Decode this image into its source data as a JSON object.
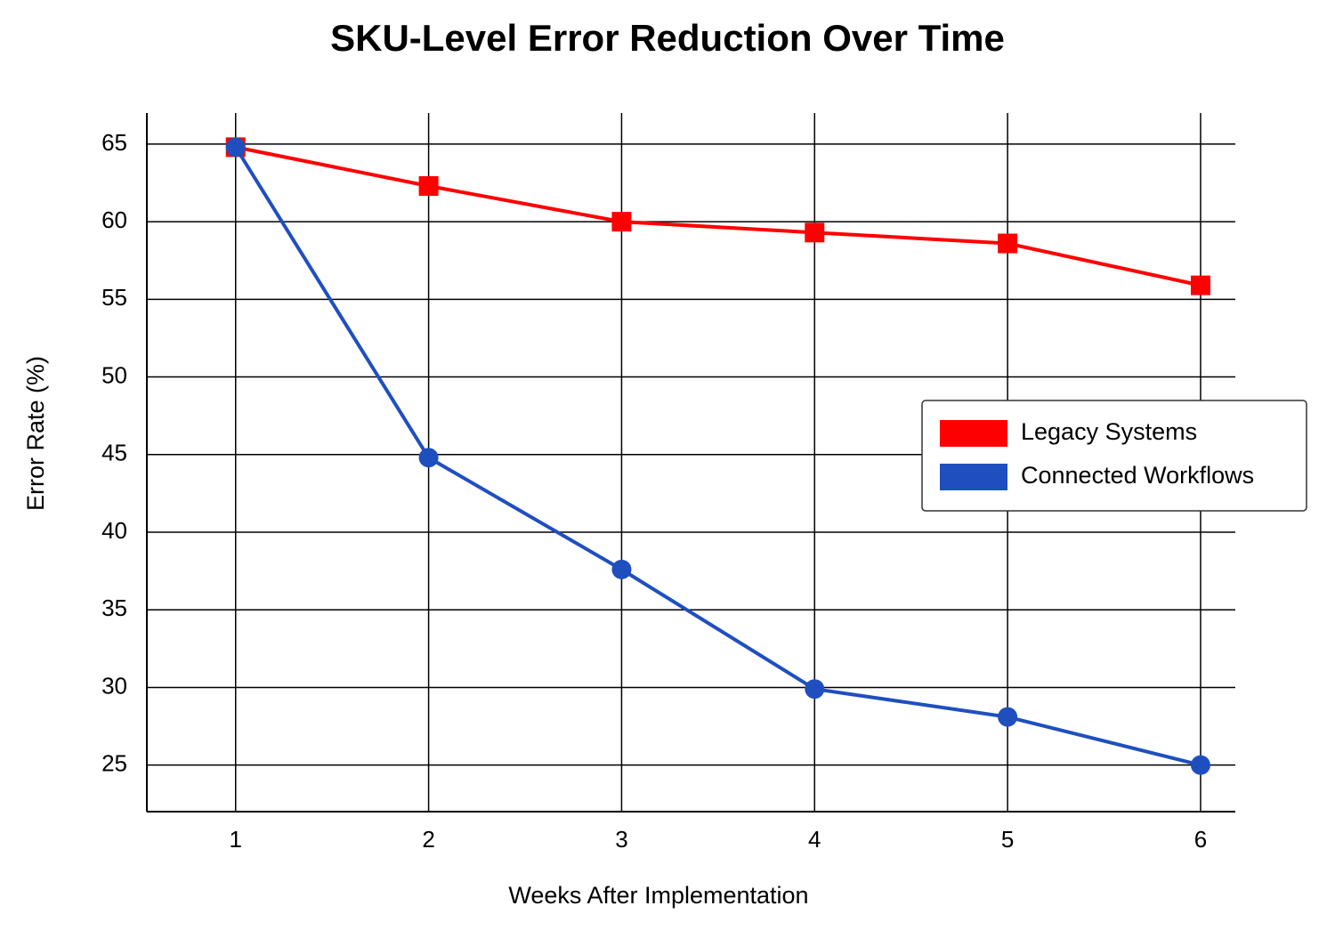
{
  "chart_data": {
    "type": "line",
    "title": "SKU-Level Error Reduction Over Time",
    "x_label": "Weeks After Implementation",
    "y_label": "Error Rate (%)",
    "x": [
      1,
      2,
      3,
      4,
      5,
      6
    ],
    "series": [
      {
        "name": "Legacy Systems",
        "color": "#ff0000",
        "marker": "square",
        "values": [
          64.8,
          62.3,
          60.0,
          59.3,
          58.6,
          55.9
        ]
      },
      {
        "name": "Connected Workflows",
        "color": "#1f4fbf",
        "marker": "circle",
        "values": [
          64.8,
          44.8,
          37.6,
          29.9,
          28.1,
          25.0
        ]
      }
    ],
    "xlim": [
      0.54,
      6.18
    ],
    "xticks": [
      1,
      2,
      3,
      4,
      5,
      6
    ],
    "ylim": [
      22,
      67
    ],
    "yticks": [
      25,
      30,
      35,
      40,
      45,
      50,
      55,
      60,
      65
    ],
    "grid": true,
    "legend": "right"
  }
}
